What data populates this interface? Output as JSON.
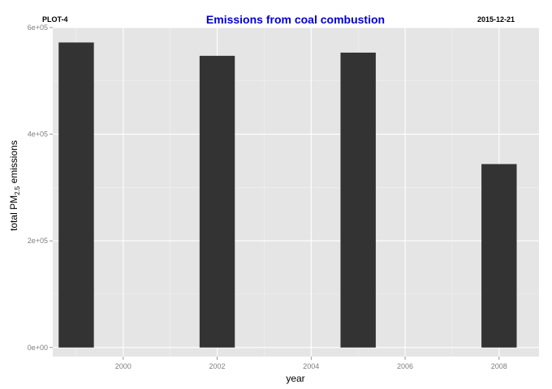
{
  "header": {
    "left_label": "PLOT-4",
    "right_label": "2015-12-21"
  },
  "colors": {
    "panel": "#e5e5e5",
    "grid_major": "#ffffff",
    "grid_minor": "#f2f2f2",
    "bar": "#333333",
    "title": "#0000cc"
  },
  "chart_data": {
    "type": "bar",
    "title": "Emissions from coal combustion",
    "xlabel": "year",
    "ylabel": {
      "prefix": "total PM",
      "subscript": "2.5",
      "suffix": " emissions"
    },
    "x": [
      1999,
      2002,
      2005,
      2008
    ],
    "values": [
      572000,
      547000,
      553000,
      344000
    ],
    "bar_width_years": 0.75,
    "xlim": [
      1998.5,
      2008.85
    ],
    "ylim": [
      -17000,
      600000
    ],
    "x_ticks": [
      {
        "value": 2000,
        "label": "2000"
      },
      {
        "value": 2002,
        "label": "2002"
      },
      {
        "value": 2004,
        "label": "2004"
      },
      {
        "value": 2006,
        "label": "2006"
      },
      {
        "value": 2008,
        "label": "2008"
      }
    ],
    "y_ticks": [
      {
        "value": 0,
        "label": "0e+00"
      },
      {
        "value": 200000,
        "label": "2e+05"
      },
      {
        "value": 400000,
        "label": "4e+05"
      },
      {
        "value": 600000,
        "label": "6e+05"
      }
    ],
    "grid": true,
    "legend": "none"
  }
}
